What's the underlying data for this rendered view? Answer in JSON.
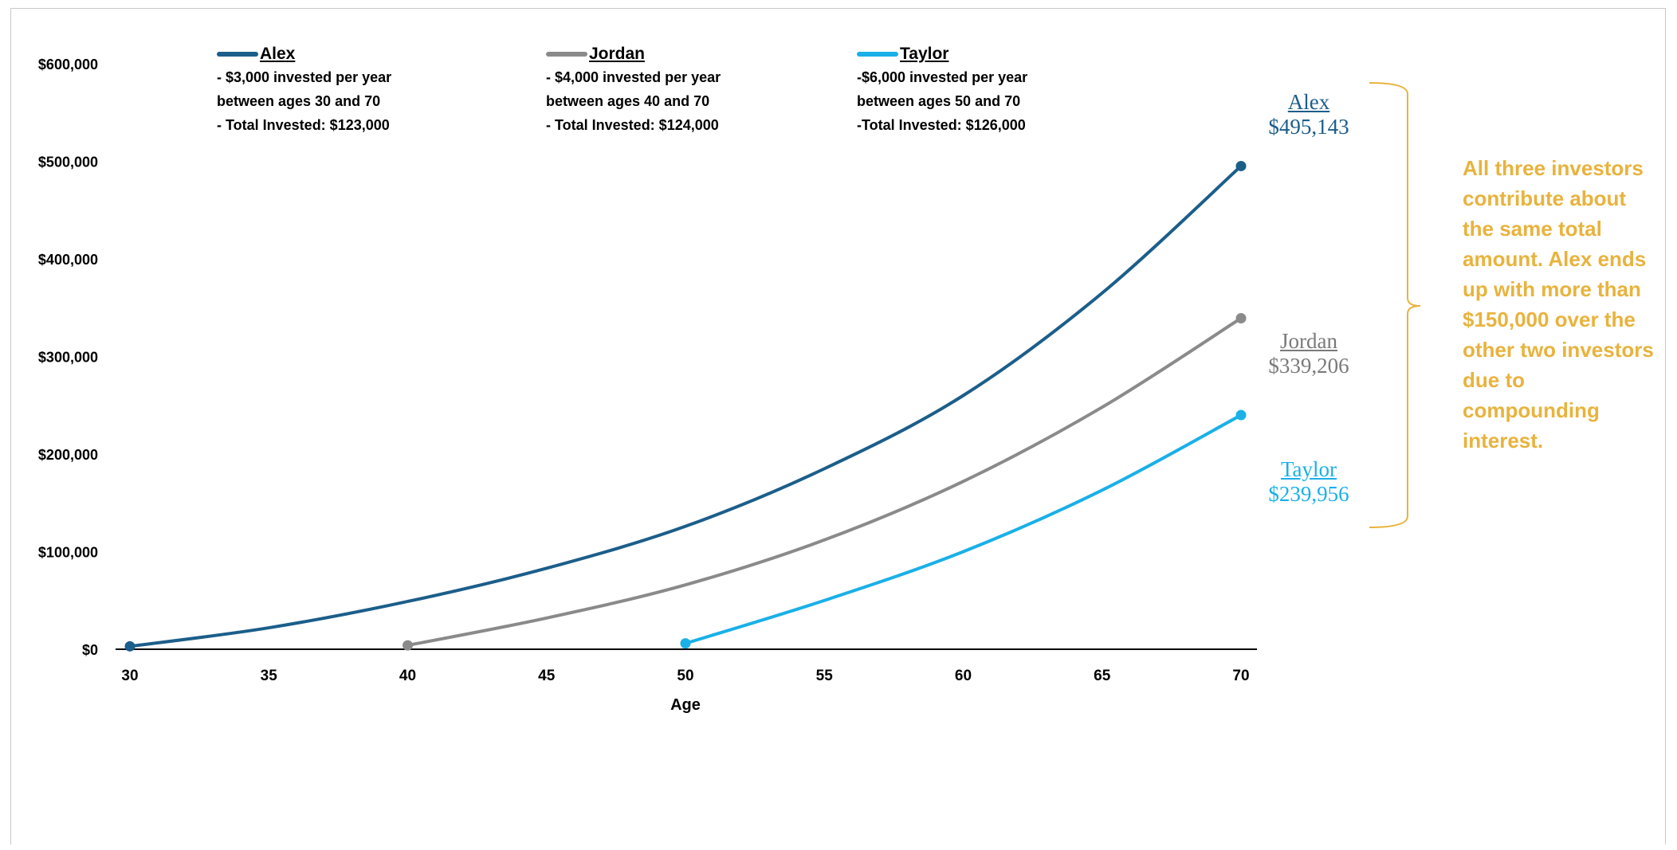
{
  "chart_data": {
    "type": "line",
    "xlabel": "Age",
    "ylabel": "",
    "xlim": [
      30,
      70
    ],
    "ylim": [
      0,
      600000
    ],
    "x_ticks": [
      "30",
      "35",
      "40",
      "45",
      "50",
      "55",
      "60",
      "65",
      "70"
    ],
    "y_ticks": [
      "$0",
      "$100,000",
      "$200,000",
      "$300,000",
      "$400,000",
      "$500,000",
      "$600,000"
    ],
    "grid": false,
    "legend_position": "top",
    "series": [
      {
        "name": "Alex",
        "color": "#1b5e8a",
        "notes": [
          "- $3,000 invested per year",
          "between ages 30 and 70",
          "- Total Invested: $123,000"
        ],
        "end_value_label": "$495,143",
        "x": [
          30,
          35,
          40,
          45,
          50,
          55,
          60,
          65,
          70
        ],
        "y": [
          3000,
          22000,
          49000,
          83000,
          126000,
          185000,
          260000,
          365000,
          495143
        ]
      },
      {
        "name": "Jordan",
        "color": "#8a8a8a",
        "notes": [
          "- $4,000 invested per year",
          "between ages 40 and 70",
          "- Total Invested: $124,000"
        ],
        "end_value_label": "$339,206",
        "x": [
          40,
          45,
          50,
          55,
          60,
          65,
          70
        ],
        "y": [
          4000,
          32000,
          66000,
          112000,
          172000,
          248000,
          339206
        ]
      },
      {
        "name": "Taylor",
        "color": "#1ab0e8",
        "notes": [
          "-$6,000 invested  per year",
          "between ages 50 and 70",
          "-Total Invested: $126,000"
        ],
        "end_value_label": "$239,956",
        "x": [
          50,
          55,
          60,
          65,
          70
        ],
        "y": [
          6000,
          50000,
          100000,
          163000,
          239956
        ]
      }
    ],
    "annotation": "All three investors contribute about the same total amount. Alex ends up with more than $150,000 over the other two investors due to compounding interest.",
    "annotation_color": "#e8b33d"
  }
}
